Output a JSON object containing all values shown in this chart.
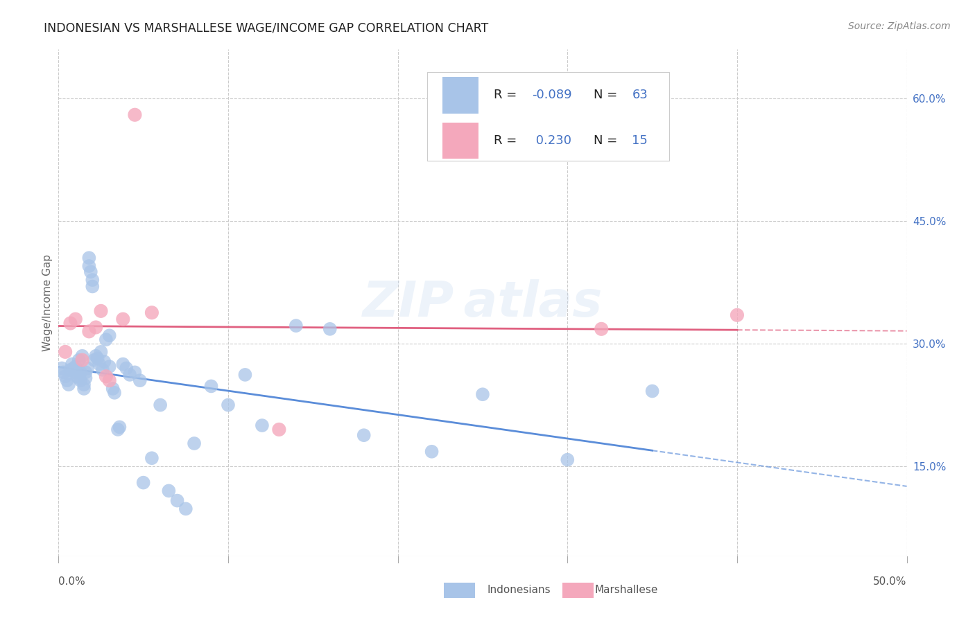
{
  "title": "INDONESIAN VS MARSHALLESE WAGE/INCOME GAP CORRELATION CHART",
  "source": "Source: ZipAtlas.com",
  "ylabel": "Wage/Income Gap",
  "right_ytick_vals": [
    0.15,
    0.3,
    0.45,
    0.6
  ],
  "legend_indonesian": "Indonesians",
  "legend_marshallese": "Marshallese",
  "R_indonesian": "-0.089",
  "N_indonesian": "63",
  "R_marshallese": "0.230",
  "N_marshallese": "15",
  "color_indonesian": "#a8c4e8",
  "color_marshallese": "#f4a8bc",
  "color_line_indonesian": "#5b8dd9",
  "color_line_marshallese": "#e06080",
  "color_text_blue": "#4472c4",
  "indonesian_x": [
    0.002,
    0.003,
    0.004,
    0.005,
    0.006,
    0.007,
    0.008,
    0.009,
    0.01,
    0.01,
    0.011,
    0.012,
    0.012,
    0.013,
    0.013,
    0.014,
    0.015,
    0.015,
    0.016,
    0.016,
    0.017,
    0.018,
    0.018,
    0.019,
    0.02,
    0.02,
    0.021,
    0.022,
    0.023,
    0.024,
    0.025,
    0.026,
    0.027,
    0.028,
    0.03,
    0.03,
    0.032,
    0.033,
    0.035,
    0.036,
    0.038,
    0.04,
    0.042,
    0.045,
    0.048,
    0.05,
    0.055,
    0.06,
    0.065,
    0.07,
    0.075,
    0.08,
    0.09,
    0.1,
    0.11,
    0.12,
    0.14,
    0.16,
    0.18,
    0.22,
    0.25,
    0.3,
    0.35
  ],
  "indonesian_y": [
    0.27,
    0.265,
    0.26,
    0.255,
    0.25,
    0.268,
    0.275,
    0.27,
    0.265,
    0.272,
    0.26,
    0.28,
    0.258,
    0.255,
    0.265,
    0.285,
    0.25,
    0.245,
    0.258,
    0.265,
    0.27,
    0.395,
    0.405,
    0.388,
    0.37,
    0.378,
    0.28,
    0.285,
    0.282,
    0.275,
    0.29,
    0.268,
    0.278,
    0.305,
    0.31,
    0.272,
    0.245,
    0.24,
    0.195,
    0.198,
    0.275,
    0.27,
    0.262,
    0.265,
    0.255,
    0.13,
    0.16,
    0.225,
    0.12,
    0.108,
    0.098,
    0.178,
    0.248,
    0.225,
    0.262,
    0.2,
    0.322,
    0.318,
    0.188,
    0.168,
    0.238,
    0.158,
    0.242
  ],
  "marshallese_x": [
    0.004,
    0.007,
    0.01,
    0.014,
    0.018,
    0.022,
    0.025,
    0.028,
    0.03,
    0.038,
    0.045,
    0.055,
    0.13,
    0.32,
    0.4
  ],
  "marshallese_y": [
    0.29,
    0.325,
    0.33,
    0.28,
    0.315,
    0.32,
    0.34,
    0.26,
    0.255,
    0.33,
    0.58,
    0.338,
    0.195,
    0.318,
    0.335
  ],
  "xmin": 0.0,
  "xmax": 0.5,
  "ymin": 0.04,
  "ymax": 0.66,
  "xtick_positions": [
    0.0,
    0.1,
    0.2,
    0.3,
    0.4,
    0.5
  ]
}
